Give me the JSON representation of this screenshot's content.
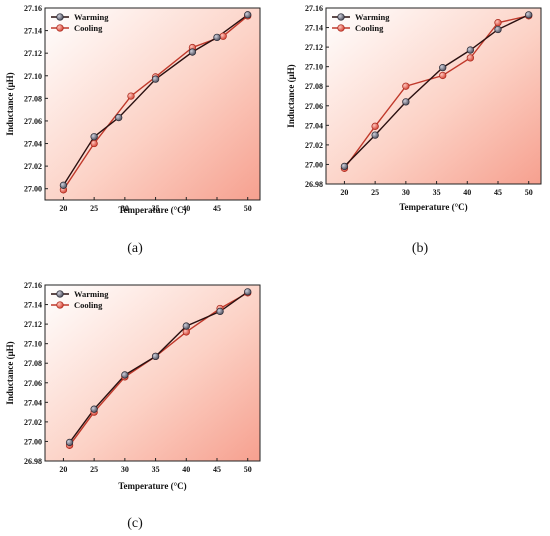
{
  "colors": {
    "warming_line": "#2a1010",
    "warming_marker": "#5a5a6a",
    "cooling_line": "#c0392b",
    "cooling_marker": "#e8574a",
    "bg_light": "#ffffff",
    "bg_dark": "#f6a08f"
  },
  "chart_data": [
    {
      "type": "line",
      "panel_label": "(a)",
      "xlabel": "Temperature (°C)",
      "ylabel": "Inductance (μH)",
      "xlim": [
        17,
        52
      ],
      "ylim": [
        26.99,
        27.16
      ],
      "xticks": [
        20,
        25,
        30,
        35,
        40,
        45,
        50
      ],
      "yticks": [
        27.0,
        27.02,
        27.04,
        27.06,
        27.08,
        27.1,
        27.12,
        27.14,
        27.16
      ],
      "legend": "top-left",
      "series": [
        {
          "name": "Warming",
          "x": [
            20,
            25,
            29,
            35,
            41,
            45,
            50
          ],
          "y": [
            27.003,
            27.046,
            27.063,
            27.097,
            27.121,
            27.134,
            27.154
          ]
        },
        {
          "name": "Cooling",
          "x": [
            20,
            25,
            31,
            35,
            41,
            46,
            50
          ],
          "y": [
            26.999,
            27.04,
            27.082,
            27.099,
            27.125,
            27.135,
            27.153
          ]
        }
      ]
    },
    {
      "type": "line",
      "panel_label": "(b)",
      "xlabel": "Temperature (°C)",
      "ylabel": "Inductance (μH)",
      "xlim": [
        17,
        52
      ],
      "ylim": [
        26.98,
        27.16
      ],
      "xticks": [
        20,
        25,
        30,
        35,
        40,
        45,
        50
      ],
      "yticks": [
        26.98,
        27.0,
        27.02,
        27.04,
        27.06,
        27.08,
        27.1,
        27.12,
        27.14,
        27.16
      ],
      "legend": "top-left",
      "series": [
        {
          "name": "Warming",
          "x": [
            20,
            25,
            30,
            36,
            40.5,
            45,
            50
          ],
          "y": [
            26.998,
            27.03,
            27.064,
            27.099,
            27.117,
            27.138,
            27.153
          ]
        },
        {
          "name": "Cooling",
          "x": [
            20,
            25,
            30,
            36,
            40.5,
            45,
            50
          ],
          "y": [
            26.996,
            27.039,
            27.08,
            27.091,
            27.109,
            27.145,
            27.152
          ]
        }
      ]
    },
    {
      "type": "line",
      "panel_label": "(c)",
      "xlabel": "Temperature (°C)",
      "ylabel": "Inductance (μH)",
      "xlim": [
        17,
        52
      ],
      "ylim": [
        26.98,
        27.16
      ],
      "xticks": [
        20,
        25,
        30,
        35,
        40,
        45,
        50
      ],
      "yticks": [
        26.98,
        27.0,
        27.02,
        27.04,
        27.06,
        27.08,
        27.1,
        27.12,
        27.14,
        27.16
      ],
      "legend": "top-left",
      "series": [
        {
          "name": "Warming",
          "x": [
            21,
            25,
            30,
            35,
            40,
            45.5,
            50
          ],
          "y": [
            26.999,
            27.033,
            27.068,
            27.087,
            27.118,
            27.133,
            27.153
          ]
        },
        {
          "name": "Cooling",
          "x": [
            21,
            25,
            30,
            35,
            40,
            45.5,
            50
          ],
          "y": [
            26.996,
            27.03,
            27.066,
            27.087,
            27.112,
            27.136,
            27.152
          ]
        }
      ]
    }
  ]
}
